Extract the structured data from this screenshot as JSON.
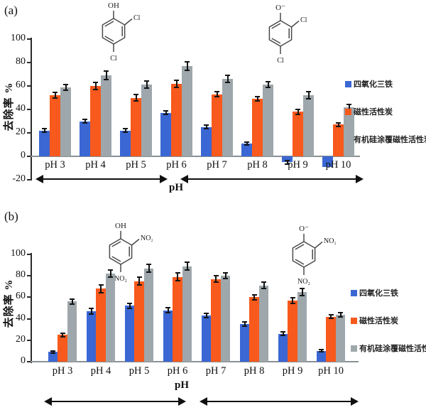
{
  "chart_data": [
    {
      "id": "a",
      "type": "bar",
      "panel_label": "(a)",
      "ylabel": "去除率 %",
      "xlabel": "pH",
      "ylim": [
        -20,
        100
      ],
      "yticks": [
        100,
        80,
        60,
        40,
        20,
        0,
        -20
      ],
      "grid": false,
      "legend_position": "right",
      "categories": [
        "pH 3",
        "pH 4",
        "pH 5",
        "pH 6",
        "pH 7",
        "pH 8",
        "pH 9",
        "pH 10"
      ],
      "series": [
        {
          "name": "四氧化三铁",
          "color": "#3A67D3",
          "values": [
            22,
            30,
            22,
            37,
            25,
            11,
            -5,
            -9
          ],
          "errors": [
            1.5,
            1.5,
            1.5,
            1.5,
            1.5,
            1,
            1.5,
            0
          ]
        },
        {
          "name": "磁性活性炭",
          "color": "#F8591C",
          "values": [
            52,
            60,
            50,
            62,
            53,
            49,
            38,
            27
          ],
          "errors": [
            2.5,
            3,
            2.5,
            3,
            2,
            2,
            2,
            1.5
          ]
        },
        {
          "name": "有机硅涂覆磁性活性炭",
          "color": "#9EA7AB",
          "values": [
            59,
            69,
            61,
            77,
            66,
            61,
            52,
            42
          ],
          "errors": [
            2.5,
            3.5,
            3,
            3.5,
            3,
            2.5,
            3,
            2
          ]
        }
      ],
      "molecule_left": {
        "top": "OH",
        "ortho": "Cl",
        "para": "Cl"
      },
      "molecule_right": {
        "top": "O⁻",
        "ortho": "Cl",
        "para": "Cl"
      }
    },
    {
      "id": "b",
      "type": "bar",
      "panel_label": "(b)",
      "ylabel": "去除率 %",
      "xlabel": "pH",
      "ylim": [
        0,
        100
      ],
      "yticks": [
        100,
        80,
        60,
        40,
        20,
        0
      ],
      "grid": false,
      "legend_position": "right",
      "categories": [
        "pH 3",
        "pH 4",
        "pH 5",
        "pH 6",
        "pH 7",
        "pH 8",
        "pH 9",
        "pH 10"
      ],
      "series": [
        {
          "name": "四氧化三铁",
          "color": "#3A67D3",
          "values": [
            9,
            47,
            52,
            48,
            43,
            35,
            26,
            10
          ],
          "errors": [
            1,
            2.5,
            2.5,
            2.5,
            2,
            2,
            1.5,
            1
          ]
        },
        {
          "name": "磁性活性炭",
          "color": "#F8591C",
          "values": [
            25,
            68,
            75,
            79,
            77,
            60,
            57,
            42
          ],
          "errors": [
            1.5,
            3.5,
            3.5,
            3.5,
            3,
            2.5,
            2.5,
            1.5
          ]
        },
        {
          "name": "有机硅涂覆磁性活性炭",
          "color": "#9EA7AB",
          "values": [
            56,
            82,
            87,
            89,
            80,
            71,
            65,
            44
          ],
          "errors": [
            2.5,
            3.5,
            3.5,
            3.5,
            2.5,
            3,
            3.5,
            2
          ]
        }
      ],
      "molecule_left": {
        "top": "OH",
        "ortho": "NO₂",
        "para": "NO₂"
      },
      "molecule_right": {
        "top": "O⁻",
        "ortho": "NO₂",
        "para": "NO₂"
      }
    }
  ]
}
